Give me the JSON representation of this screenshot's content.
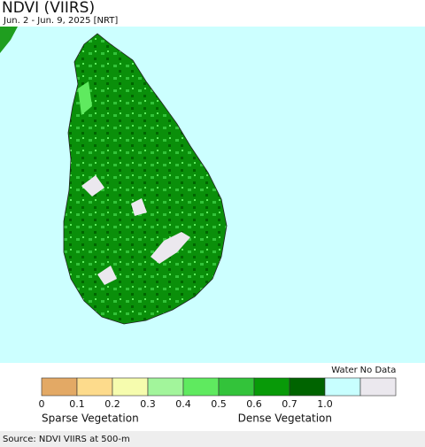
{
  "header": {
    "title": "NDVI (VIIRS)",
    "subtitle": "Jun. 2 - Jun. 9, 2025 [NRT]"
  },
  "legend": {
    "colors": [
      "#e3a965",
      "#fddb8c",
      "#f6fcae",
      "#a2f59b",
      "#5fea5f",
      "#33c33a",
      "#089a08",
      "#006400",
      "#c8ffff",
      "#ebe8ee"
    ],
    "ticks": [
      "0",
      "0.1",
      "0.2",
      "0.3",
      "0.4",
      "0.5",
      "0.6",
      "0.7",
      "1.0"
    ],
    "water": "Water",
    "no_data": "No Data",
    "sparse": "Sparse Vegetation",
    "dense": "Dense Vegetation"
  },
  "footer": {
    "source": "Source: NDVI VIIRS at 500-m"
  }
}
